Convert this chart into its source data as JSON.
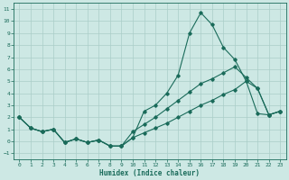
{
  "xlabel": "Humidex (Indice chaleur)",
  "xlim": [
    -0.5,
    23.5
  ],
  "ylim": [
    -1.5,
    11.5
  ],
  "xticks": [
    0,
    1,
    2,
    3,
    4,
    5,
    6,
    7,
    8,
    9,
    10,
    11,
    12,
    13,
    14,
    15,
    16,
    17,
    18,
    19,
    20,
    21,
    22,
    23
  ],
  "yticks": [
    -1,
    0,
    1,
    2,
    3,
    4,
    5,
    6,
    7,
    8,
    9,
    10,
    11
  ],
  "bg_color": "#cde8e4",
  "grid_color": "#aacdc8",
  "line_color": "#1a6b5a",
  "line1_x": [
    0,
    1,
    2,
    3,
    4,
    5,
    6,
    7,
    8,
    9,
    10,
    11,
    12,
    13,
    14,
    15,
    16,
    17,
    18,
    19,
    20,
    21,
    22,
    23
  ],
  "line1_y": [
    2.0,
    1.1,
    0.8,
    1.0,
    -0.1,
    0.2,
    -0.1,
    0.1,
    -0.4,
    -0.4,
    0.3,
    2.5,
    3.0,
    4.0,
    5.5,
    9.0,
    10.7,
    9.7,
    7.8,
    6.8,
    5.0,
    4.4,
    2.2,
    2.5
  ],
  "line2_x": [
    0,
    1,
    2,
    3,
    4,
    5,
    6,
    7,
    8,
    9,
    10,
    11,
    12,
    13,
    14,
    15,
    16,
    17,
    18,
    19,
    20,
    21,
    22,
    23
  ],
  "line2_y": [
    2.0,
    1.1,
    0.8,
    1.0,
    -0.1,
    0.2,
    -0.1,
    0.1,
    -0.4,
    -0.4,
    0.8,
    1.4,
    2.0,
    2.7,
    3.4,
    4.1,
    4.8,
    5.2,
    5.7,
    6.2,
    5.3,
    4.4,
    2.2,
    2.5
  ],
  "line3_x": [
    0,
    1,
    2,
    3,
    4,
    5,
    6,
    7,
    8,
    9,
    10,
    11,
    12,
    13,
    14,
    15,
    16,
    17,
    18,
    19,
    20,
    21,
    22,
    23
  ],
  "line3_y": [
    2.0,
    1.1,
    0.8,
    1.0,
    -0.1,
    0.2,
    -0.1,
    0.1,
    -0.4,
    -0.4,
    0.3,
    0.7,
    1.1,
    1.5,
    2.0,
    2.5,
    3.0,
    3.4,
    3.9,
    4.3,
    5.0,
    2.3,
    2.2,
    2.5
  ]
}
